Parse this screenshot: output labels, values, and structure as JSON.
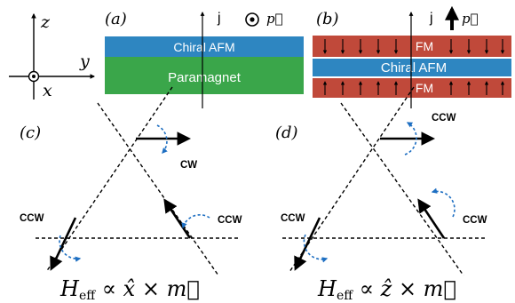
{
  "axes": {
    "z": "z",
    "y": "y",
    "x": "x"
  },
  "panel_a": {
    "label": "(a)",
    "current": "j",
    "polarization": "p⃗",
    "top_layer": "Chiral AFM",
    "bottom_layer": "Paramagnet",
    "colors": {
      "afm": "#2e86c1",
      "para": "#3aa64a"
    }
  },
  "panel_b": {
    "label": "(b)",
    "current": "j",
    "polarization": "p⃗",
    "top_layer": "FM",
    "middle_layer": "Chiral AFM",
    "bottom_layer": "FM",
    "colors": {
      "fm": "#c0493a",
      "afm": "#2e86c1"
    }
  },
  "panel_c": {
    "label": "(c)",
    "top_rotation": "CW",
    "left_rotation": "CCW",
    "right_rotation": "CCW",
    "equation": {
      "H": "H",
      "sub": "eff",
      "rest": " ∝ x̂ × m⃗"
    }
  },
  "panel_d": {
    "label": "(d)",
    "top_rotation": "CCW",
    "left_rotation": "CCW",
    "right_rotation": "CCW",
    "equation": {
      "H": "H",
      "sub": "eff",
      "rest": " ∝ ẑ × m⃗"
    }
  }
}
